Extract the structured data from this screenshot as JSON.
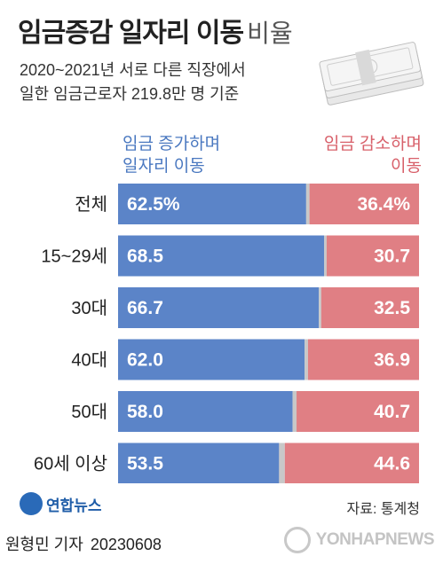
{
  "title": "임금증감 일자리 이동",
  "title_suffix": "비율",
  "subtitle_lines": [
    "2020~2021년 서로 다른 직장에서",
    "일한 임금근로자 219.8만 명 기준"
  ],
  "legend": {
    "increase": [
      "임금 증가하며",
      "일자리 이동"
    ],
    "decrease": [
      "임금 감소하며",
      "이동"
    ]
  },
  "chart_data": {
    "type": "bar",
    "orientation": "horizontal-stacked",
    "categories": [
      "전체",
      "15~29세",
      "30대",
      "40대",
      "50대",
      "60세 이상"
    ],
    "series": [
      {
        "name": "임금 증가하며 일자리 이동",
        "values": [
          62.5,
          68.5,
          66.7,
          62.0,
          58.0,
          53.5
        ],
        "labels": [
          "62.5%",
          "68.5",
          "66.7",
          "62.0",
          "58.0",
          "53.5"
        ],
        "color": "#5b84c8"
      },
      {
        "name": "임금 감소하며 이동",
        "values": [
          36.4,
          30.7,
          32.5,
          36.9,
          40.7,
          44.6
        ],
        "labels": [
          "36.4%",
          "30.7",
          "32.5",
          "36.9",
          "40.7",
          "44.6"
        ],
        "color": "#e07f84"
      }
    ],
    "remainder_color": "#c8c8c8",
    "total": 100
  },
  "source": "자료: 통계청",
  "logo_text": "연합뉴스",
  "reporter": "원형민 기자",
  "date": "20230608",
  "watermark": "YONHAPNEWS",
  "colors": {
    "blue": "#5b84c8",
    "red": "#e07f84",
    "gap": "#c8c8c8"
  }
}
